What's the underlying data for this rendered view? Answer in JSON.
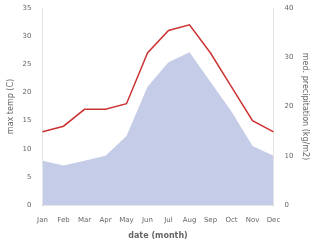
{
  "chart_data": {
    "type": "line",
    "categories": [
      "Jan",
      "Feb",
      "Mar",
      "Apr",
      "May",
      "Jun",
      "Jul",
      "Aug",
      "Sep",
      "Oct",
      "Nov",
      "Dec"
    ],
    "series": [
      {
        "type": "line",
        "color": "#cc3333",
        "values": [
          13,
          14,
          17,
          17,
          18,
          27,
          31,
          32,
          27,
          21,
          15,
          13
        ]
      },
      {
        "type": "area",
        "color": "#c5cce8",
        "axis": "y2",
        "values": [
          9,
          8,
          9,
          10,
          14,
          24,
          29,
          31,
          25,
          19,
          12,
          10
        ]
      }
    ],
    "xlabel": "date (month)",
    "ylabel": "max temp (C)",
    "y2label": "med. precipitation (kg/m2)",
    "ylim": [
      0,
      35
    ],
    "yticks": [
      0,
      5,
      10,
      15,
      20,
      25,
      30,
      35
    ],
    "y2lim": [
      0,
      40
    ],
    "y2ticks": [
      0,
      10,
      20,
      30,
      40
    ],
    "grid": false
  }
}
